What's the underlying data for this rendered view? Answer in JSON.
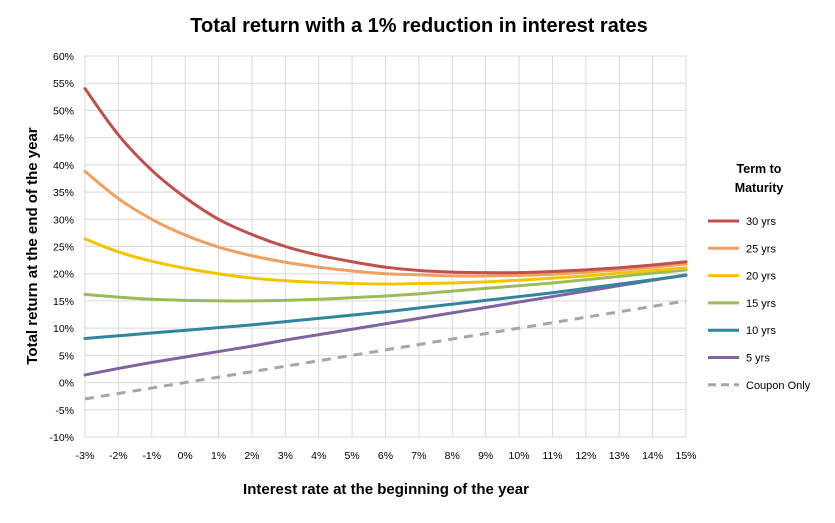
{
  "chart_data": {
    "type": "line",
    "title": "Total return with a 1% reduction in interest rates",
    "xlabel": "Interest rate at the beginning of the year",
    "ylabel": "Total return at the end of the year",
    "x_tick_labels": [
      "-3%",
      "-2%",
      "-1%",
      "0%",
      "1%",
      "2%",
      "3%",
      "4%",
      "5%",
      "6%",
      "7%",
      "8%",
      "9%",
      "10%",
      "11%",
      "12%",
      "13%",
      "14%",
      "15%"
    ],
    "y_tick_labels": [
      "-10%",
      "-5%",
      "0%",
      "5%",
      "10%",
      "15%",
      "20%",
      "25%",
      "30%",
      "35%",
      "40%",
      "45%",
      "50%",
      "55%",
      "60%"
    ],
    "xlim": [
      -3,
      15
    ],
    "ylim": [
      -10,
      60
    ],
    "grid": true,
    "legend": {
      "title": "Term to Maturity",
      "placement": "right"
    },
    "x": [
      -3,
      -2,
      -1,
      0,
      1,
      2,
      3,
      4,
      5,
      6,
      7,
      8,
      9,
      10,
      11,
      12,
      13,
      14,
      15
    ],
    "series": [
      {
        "name": "30 yrs",
        "color": "#c0504d",
        "dash": false,
        "values": [
          54,
          45.5,
          39,
          34,
          30,
          27.2,
          25,
          23.4,
          22.2,
          21.2,
          20.6,
          20.3,
          20.2,
          20.2,
          20.4,
          20.7,
          21.1,
          21.6,
          22.2
        ]
      },
      {
        "name": "25 yrs",
        "color": "#f0a060",
        "dash": false,
        "values": [
          38.8,
          33.8,
          30,
          27.1,
          24.9,
          23.3,
          22.1,
          21.2,
          20.5,
          20.0,
          19.8,
          19.6,
          19.6,
          19.7,
          19.9,
          20.3,
          20.7,
          21.2,
          21.8
        ]
      },
      {
        "name": "20 yrs",
        "color": "#f2c500",
        "dash": false,
        "values": [
          26.4,
          24,
          22.3,
          21,
          20,
          19.2,
          18.7,
          18.4,
          18.2,
          18.1,
          18.2,
          18.3,
          18.5,
          18.8,
          19.2,
          19.6,
          20.1,
          20.6,
          21.1
        ]
      },
      {
        "name": "15 yrs",
        "color": "#9bbb59",
        "dash": false,
        "values": [
          16.2,
          15.7,
          15.3,
          15.1,
          15,
          15,
          15.1,
          15.3,
          15.6,
          15.9,
          16.3,
          16.8,
          17.3,
          17.8,
          18.3,
          18.9,
          19.5,
          20.1,
          20.7
        ]
      },
      {
        "name": "10 yrs",
        "color": "#31859c",
        "dash": false,
        "values": [
          8.1,
          8.6,
          9.1,
          9.6,
          10.1,
          10.6,
          11.2,
          11.8,
          12.4,
          13,
          13.7,
          14.4,
          15.1,
          15.8,
          16.5,
          17.3,
          18.1,
          18.9,
          19.7
        ]
      },
      {
        "name": "5 yrs",
        "color": "#8064a2",
        "dash": false,
        "values": [
          1.4,
          2.6,
          3.7,
          4.7,
          5.7,
          6.7,
          7.8,
          8.8,
          9.8,
          10.8,
          11.8,
          12.8,
          13.8,
          14.8,
          15.8,
          16.8,
          17.8,
          18.8,
          19.8
        ]
      },
      {
        "name": "Coupon Only",
        "color": "#a6a6a6",
        "dash": true,
        "values": [
          -3,
          -2,
          -1,
          0,
          1,
          2,
          3,
          4,
          5,
          6,
          7,
          8,
          9,
          10,
          11,
          12,
          13,
          14,
          15
        ]
      }
    ]
  }
}
